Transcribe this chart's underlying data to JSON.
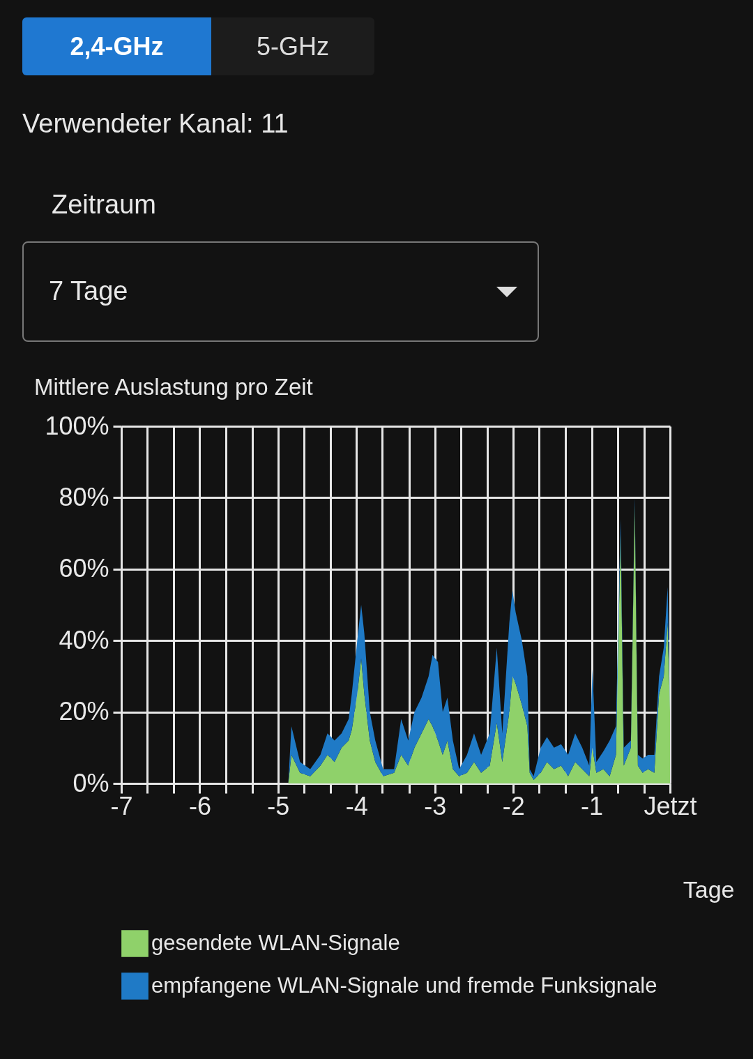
{
  "chart_data": {
    "type": "area",
    "title": "Mittlere Auslastung pro Zeit",
    "xlabel": "Tage",
    "annotations": [
      "2,4-GHz",
      "5-GHz",
      "Verwendeter Kanal:  11",
      "Zeitraum",
      "7 Tage"
    ],
    "x": [
      -4.87,
      -4.83,
      -4.72,
      -4.59,
      -4.46,
      -4.37,
      -4.28,
      -4.19,
      -4.1,
      -4.06,
      -3.99,
      -3.94,
      -3.9,
      -3.83,
      -3.76,
      -3.66,
      -3.52,
      -3.43,
      -3.34,
      -3.26,
      -3.17,
      -3.08,
      -3.03,
      -2.96,
      -2.9,
      -2.84,
      -2.77,
      -2.69,
      -2.59,
      -2.5,
      -2.41,
      -2.3,
      -2.21,
      -2.14,
      -2.05,
      -2.01,
      -1.97,
      -1.89,
      -1.82,
      -1.79,
      -1.74,
      -1.65,
      -1.57,
      -1.48,
      -1.39,
      -1.3,
      -1.21,
      -1.12,
      -1.03,
      -0.99,
      -0.94,
      -0.85,
      -0.77,
      -0.69,
      -0.63,
      -0.59,
      -0.5,
      -0.45,
      -0.41,
      -0.35,
      -0.28,
      -0.2,
      -0.14,
      -0.08,
      -0.03,
      0
    ],
    "stacked": true,
    "series": [
      {
        "name": "gesendete WLAN-Signale",
        "color": "#8fd16a",
        "values": [
          0,
          8,
          3,
          2,
          5,
          8,
          6,
          10,
          12,
          15,
          25,
          35,
          25,
          12,
          6,
          2,
          3,
          8,
          5,
          10,
          14,
          18,
          16,
          12,
          8,
          12,
          4,
          2,
          3,
          6,
          3,
          5,
          17,
          6,
          20,
          30,
          28,
          22,
          16,
          3,
          1,
          3,
          6,
          4,
          5,
          2,
          6,
          4,
          2,
          10,
          3,
          4,
          2,
          8,
          70,
          5,
          10,
          78,
          5,
          3,
          4,
          3,
          25,
          30,
          45,
          20
        ]
      },
      {
        "name": "empfangene WLAN-Signale und fremde Funksignale",
        "color": "#1f7ac6",
        "values": [
          0,
          8,
          3,
          2,
          3,
          6,
          6,
          4,
          6,
          10,
          15,
          15,
          17,
          8,
          6,
          2,
          1,
          10,
          7,
          10,
          10,
          12,
          20,
          22,
          12,
          12,
          8,
          2,
          5,
          8,
          5,
          9,
          21,
          8,
          25,
          24,
          20,
          18,
          14,
          1,
          1,
          7,
          7,
          6,
          6,
          6,
          8,
          6,
          3,
          22,
          3,
          5,
          10,
          8,
          4,
          5,
          2,
          2,
          3,
          4,
          4,
          5,
          5,
          8,
          10,
          0
        ]
      }
    ],
    "xlim": [
      -7,
      0
    ],
    "ylim": [
      0,
      100
    ],
    "xticks": [
      -7,
      {
        "value": -6.67,
        "label": null
      },
      {
        "value": -6.33,
        "label": null
      },
      -6,
      {
        "value": -5.67,
        "label": null
      },
      {
        "value": -5.33,
        "label": null
      },
      -5,
      {
        "value": -4.67,
        "label": null
      },
      {
        "value": -4.33,
        "label": null
      },
      -4,
      {
        "value": -3.67,
        "label": null
      },
      {
        "value": -3.33,
        "label": null
      },
      -3,
      {
        "value": -2.67,
        "label": null
      },
      {
        "value": -2.33,
        "label": null
      },
      -2,
      {
        "value": -1.67,
        "label": null
      },
      {
        "value": -1.33,
        "label": null
      },
      -1,
      {
        "value": -0.67,
        "label": null
      },
      {
        "value": -0.33,
        "label": null
      },
      {
        "value": 0,
        "label": "Jetzt"
      }
    ],
    "yticks": [
      {
        "value": 0,
        "label": "0%"
      },
      {
        "value": 20,
        "label": "20%"
      },
      {
        "value": 40,
        "label": "40%"
      },
      {
        "value": 60,
        "label": "60%"
      },
      {
        "value": 80,
        "label": "80%"
      },
      {
        "value": 100,
        "label": "100%"
      }
    ],
    "grid": true,
    "legend": "bottom"
  }
}
